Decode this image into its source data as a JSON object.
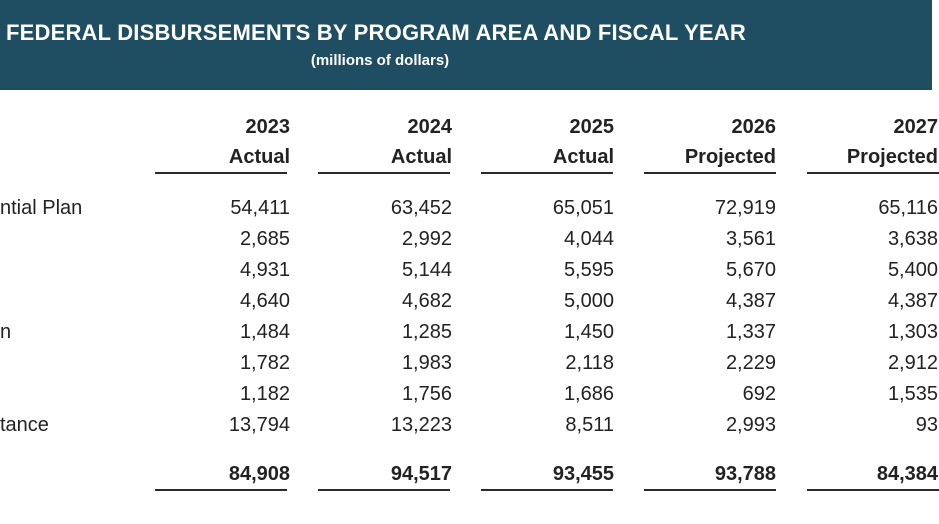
{
  "banner": {
    "title": "FEDERAL DISBURSEMENTS BY PROGRAM AREA AND FISCAL YEAR",
    "subtitle": "(millions of dollars)"
  },
  "columns": [
    {
      "year": "2023",
      "status": "Actual"
    },
    {
      "year": "2024",
      "status": "Actual"
    },
    {
      "year": "2025",
      "status": "Actual"
    },
    {
      "year": "2026",
      "status": "Projected"
    },
    {
      "year": "2027",
      "status": "Projected"
    }
  ],
  "rows": [
    {
      "label": "ntial Plan",
      "values": [
        "54,411",
        "63,452",
        "65,051",
        "72,919",
        "65,116"
      ]
    },
    {
      "label": "",
      "values": [
        "2,685",
        "2,992",
        "4,044",
        "3,561",
        "3,638"
      ]
    },
    {
      "label": "",
      "values": [
        "4,931",
        "5,144",
        "5,595",
        "5,670",
        "5,400"
      ]
    },
    {
      "label": "",
      "values": [
        "4,640",
        "4,682",
        "5,000",
        "4,387",
        "4,387"
      ]
    },
    {
      "label": "n",
      "values": [
        "1,484",
        "1,285",
        "1,450",
        "1,337",
        "1,303"
      ]
    },
    {
      "label": "",
      "values": [
        "1,782",
        "1,983",
        "2,118",
        "2,229",
        "2,912"
      ]
    },
    {
      "label": "",
      "values": [
        "1,182",
        "1,756",
        "1,686",
        "692",
        "1,535"
      ]
    },
    {
      "label": "tance",
      "values": [
        "13,794",
        "13,223",
        "8,511",
        "2,993",
        "93"
      ]
    }
  ],
  "totals": [
    "84,908",
    "94,517",
    "93,455",
    "93,788",
    "84,384"
  ]
}
